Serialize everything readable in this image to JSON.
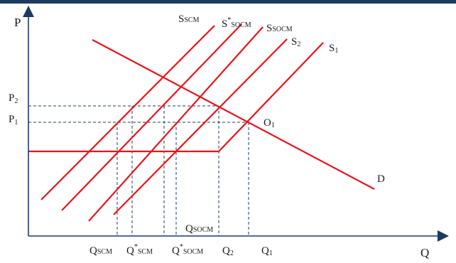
{
  "colors": {
    "top_bar": "#1f3a60",
    "curve": "#e8141b",
    "axis": "#1f3a60",
    "dashed": "#1f3a60",
    "text": "#1a1a1a"
  },
  "axes": {
    "y_label": "P",
    "x_label": "Q"
  },
  "price_levels": {
    "p2": {
      "main": "P",
      "sub": "2"
    },
    "p1": {
      "main": "P",
      "sub": "1"
    }
  },
  "quantity_ticks": [
    {
      "key": "qscm",
      "main": "Q",
      "sub": "SCM",
      "sup": ""
    },
    {
      "key": "qscm_star",
      "main": "Q",
      "sub": "SCM",
      "sup": "*"
    },
    {
      "key": "qsocm_star",
      "main": "Q",
      "sub": "SOCM",
      "sup": "*"
    },
    {
      "key": "q2",
      "main": "Q",
      "sub": "2",
      "sup": ""
    },
    {
      "key": "q1",
      "main": "Q",
      "sub": "1",
      "sup": ""
    }
  ],
  "qsocm_label": {
    "main": "Q",
    "sub": "SOCM"
  },
  "supply_curves": [
    {
      "key": "sscm",
      "main": "S",
      "sub": "SCM",
      "sup": ""
    },
    {
      "key": "sstar_socm",
      "main": "S",
      "sub": "SOCM",
      "sup": "*"
    },
    {
      "key": "ssocm",
      "main": "S",
      "sub": "SOCM",
      "sup": ""
    },
    {
      "key": "s2",
      "main": "S",
      "sub": "2",
      "sup": ""
    },
    {
      "key": "s1",
      "main": "S",
      "sub": "1",
      "sup": ""
    }
  ],
  "demand": {
    "label": "D"
  },
  "equilibrium": {
    "main": "O",
    "sub": "1"
  }
}
